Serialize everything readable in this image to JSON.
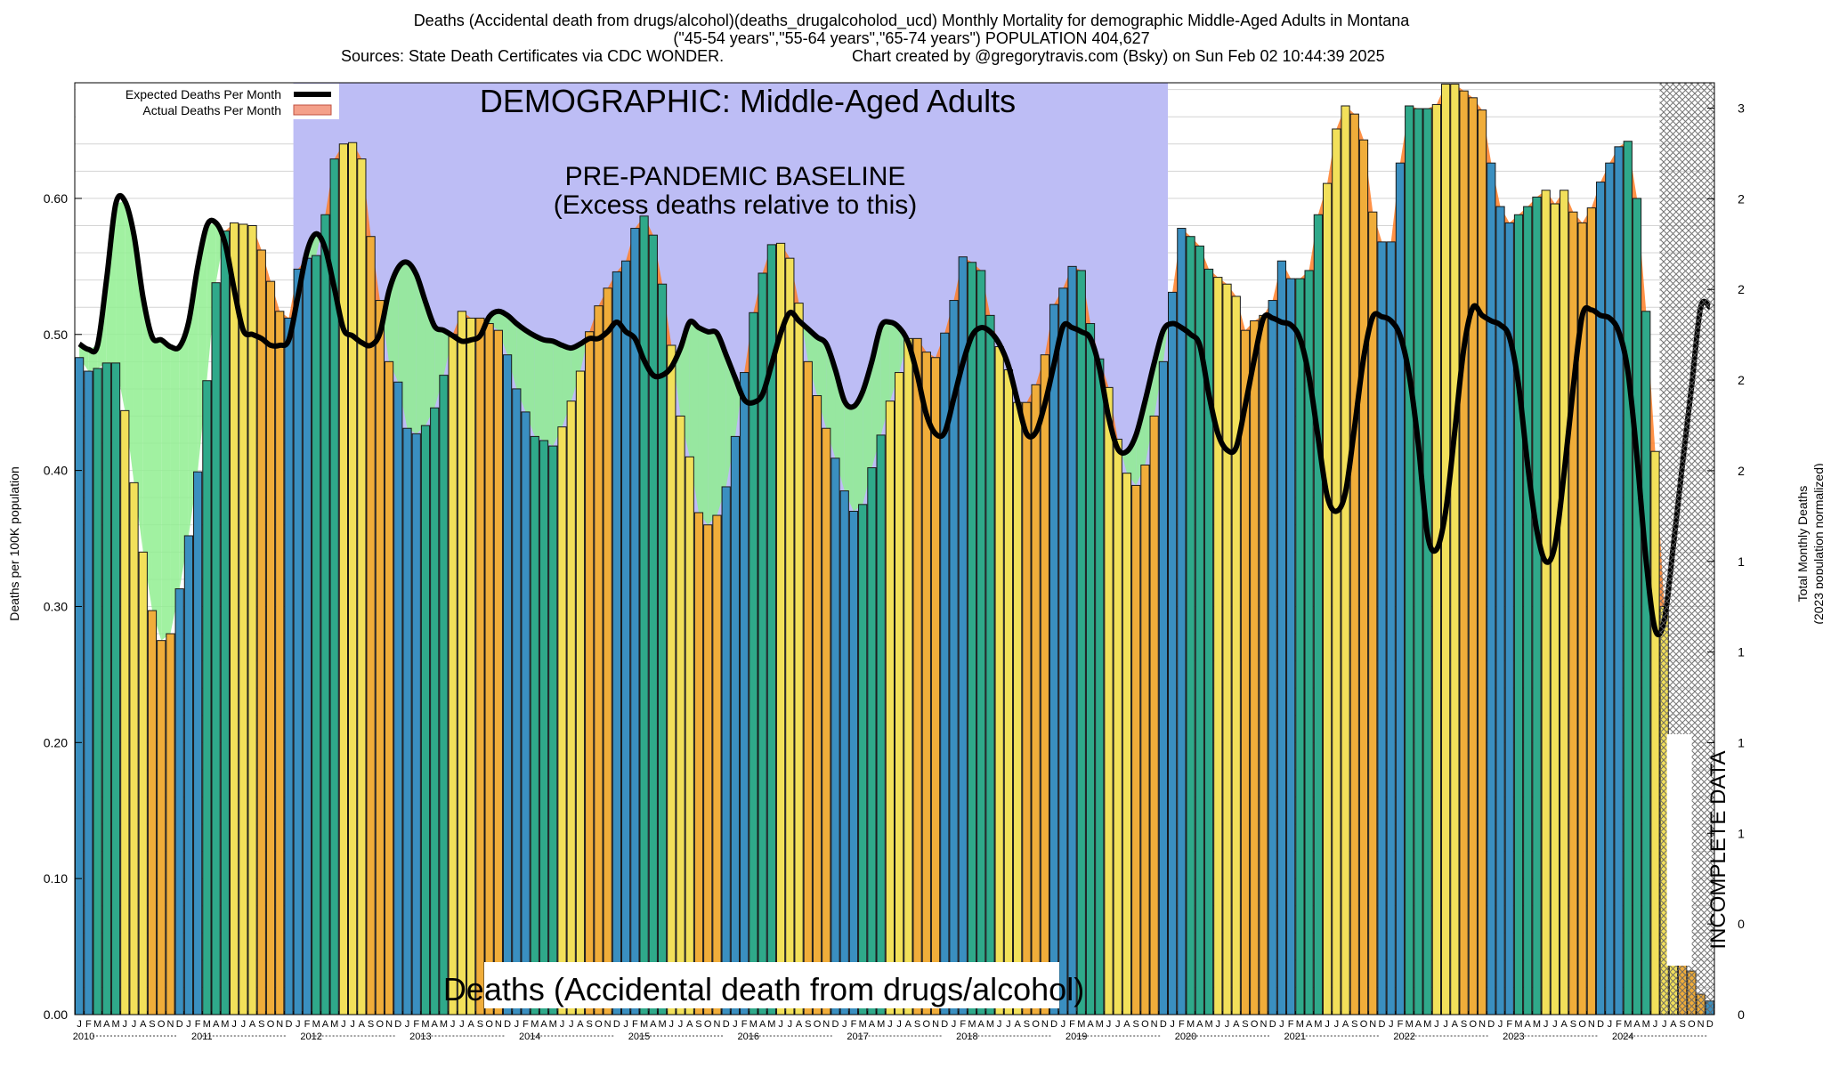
{
  "header": {
    "title_line1": "Deaths (Accidental death from drugs/alcohol)(deaths_drugalcoholod_ucd) Monthly Mortality for demographic Middle-Aged Adults in Montana",
    "title_line2": "(\"45-54 years\",\"55-64 years\",\"65-74 years\") POPULATION 404,627",
    "sources": "Sources: State Death Certificates via CDC WONDER.",
    "credit": "Chart created by @gregorytravis.com (Bsky) on Sun Feb 02 10:44:39 2025"
  },
  "chart_data": {
    "type": "bar",
    "title": "Deaths (Accidental death from drugs/alcohol)(deaths_drugalcoholod_ucd) Monthly Mortality for demographic Middle-Aged Adults in Montana",
    "ylabel": "Deaths per 100K population",
    "ylabel_right_line1": "Total Monthly Deaths",
    "ylabel_right_line2": "(2023 population normalized)",
    "ylim": [
      0,
      0.685
    ],
    "y_ticks": [
      "0.00",
      "0.10",
      "0.20",
      "0.30",
      "0.40",
      "0.50",
      "0.60"
    ],
    "y_tick_values": [
      0,
      0.1,
      0.2,
      0.3,
      0.4,
      0.5,
      0.6
    ],
    "right_ticks": [
      "0",
      "0",
      "1",
      "1",
      "1",
      "1",
      "2",
      "2",
      "2",
      "2",
      "3"
    ],
    "right_tick_values": [
      0,
      0.5,
      1,
      1.5,
      2,
      2.5,
      3,
      3.5,
      4,
      4.5,
      5
    ],
    "right_ylim": [
      0,
      5.14
    ],
    "month_letters": [
      "J",
      "F",
      "M",
      "A",
      "M",
      "J",
      "J",
      "A",
      "S",
      "O",
      "N",
      "D"
    ],
    "years": [
      "2010",
      "2011",
      "2012",
      "2013",
      "2014",
      "2015",
      "2016",
      "2017",
      "2018",
      "2019",
      "2020",
      "2021",
      "2022",
      "2023",
      "2024"
    ],
    "banner_title": "DEMOGRAPHIC: Middle-Aged Adults",
    "baseline_label_1": "PRE-PANDEMIC BASELINE",
    "baseline_label_2": "(Excess deaths relative to this)",
    "bottom_label": "Deaths (Accidental death from drugs/alcohol)",
    "incomplete_label": "INCOMPLETE DATA",
    "legend": {
      "expected": "Expected Deaths Per Month",
      "actual": "Actual Deaths Per Month"
    },
    "colors": {
      "winter": "#3a8fc0",
      "spring": "#2fa98a",
      "summer": "#f2e05a",
      "autumn": "#f0ad3a",
      "baseline_region": "#bdbdf5",
      "deficit_fill": "#90ee90",
      "excess_fill": "#ff7f27",
      "hatch": "#777777",
      "expected_line": "#000000"
    },
    "series": [
      {
        "name": "Actual Deaths Per Month",
        "values": [
          0.483,
          0.473,
          0.475,
          0.479,
          0.479,
          0.444,
          0.391,
          0.34,
          0.297,
          0.275,
          0.28,
          0.313,
          0.352,
          0.399,
          0.466,
          0.538,
          0.576,
          0.582,
          0.581,
          0.58,
          0.562,
          0.539,
          0.517,
          0.512,
          0.548,
          0.556,
          0.558,
          0.588,
          0.629,
          0.64,
          0.641,
          0.629,
          0.572,
          0.525,
          0.48,
          0.465,
          0.431,
          0.427,
          0.433,
          0.446,
          0.47,
          0.5,
          0.517,
          0.512,
          0.512,
          0.508,
          0.503,
          0.485,
          0.46,
          0.443,
          0.425,
          0.422,
          0.418,
          0.432,
          0.451,
          0.473,
          0.502,
          0.521,
          0.534,
          0.546,
          0.554,
          0.578,
          0.587,
          0.573,
          0.537,
          0.492,
          0.44,
          0.41,
          0.369,
          0.36,
          0.367,
          0.388,
          0.425,
          0.472,
          0.516,
          0.545,
          0.566,
          0.567,
          0.556,
          0.523,
          0.48,
          0.455,
          0.431,
          0.409,
          0.385,
          0.37,
          0.375,
          0.402,
          0.426,
          0.451,
          0.472,
          0.497,
          0.497,
          0.487,
          0.483,
          0.501,
          0.525,
          0.557,
          0.553,
          0.547,
          0.514,
          0.491,
          0.474,
          0.45,
          0.45,
          0.463,
          0.485,
          0.522,
          0.534,
          0.55,
          0.547,
          0.508,
          0.482,
          0.461,
          0.423,
          0.398,
          0.389,
          0.404,
          0.44,
          0.48,
          0.531,
          0.578,
          0.572,
          0.565,
          0.548,
          0.542,
          0.537,
          0.528,
          0.503,
          0.51,
          0.514,
          0.525,
          0.554,
          0.541,
          0.541,
          0.547,
          0.588,
          0.611,
          0.651,
          0.668,
          0.662,
          0.643,
          0.59,
          0.568,
          0.568,
          0.626,
          0.668,
          0.666,
          0.666,
          0.669,
          0.684,
          0.684,
          0.679,
          0.674,
          0.665,
          0.626,
          0.594,
          0.582,
          0.588,
          0.594,
          0.601,
          0.606,
          0.596,
          0.606,
          0.59,
          0.582,
          0.593,
          0.612,
          0.626,
          0.638,
          0.642,
          0.6,
          0.517,
          0.414,
          0.3,
          0.201,
          0.18,
          0.032,
          0.015,
          0.01
        ]
      },
      {
        "name": "Expected Deaths Per Month",
        "values": [
          0.493,
          0.489,
          0.492,
          0.541,
          0.596,
          0.598,
          0.573,
          0.527,
          0.498,
          0.496,
          0.491,
          0.491,
          0.509,
          0.55,
          0.58,
          0.582,
          0.567,
          0.533,
          0.503,
          0.5,
          0.497,
          0.492,
          0.492,
          0.496,
          0.528,
          0.561,
          0.574,
          0.563,
          0.534,
          0.504,
          0.499,
          0.494,
          0.492,
          0.501,
          0.532,
          0.549,
          0.553,
          0.544,
          0.524,
          0.506,
          0.503,
          0.499,
          0.495,
          0.496,
          0.499,
          0.513,
          0.517,
          0.514,
          0.508,
          0.503,
          0.499,
          0.496,
          0.495,
          0.492,
          0.49,
          0.493,
          0.497,
          0.497,
          0.502,
          0.509,
          0.502,
          0.497,
          0.481,
          0.47,
          0.47,
          0.476,
          0.49,
          0.509,
          0.505,
          0.502,
          0.501,
          0.485,
          0.468,
          0.452,
          0.45,
          0.456,
          0.478,
          0.501,
          0.516,
          0.51,
          0.504,
          0.498,
          0.493,
          0.474,
          0.451,
          0.447,
          0.458,
          0.48,
          0.506,
          0.509,
          0.505,
          0.494,
          0.47,
          0.441,
          0.427,
          0.428,
          0.453,
          0.479,
          0.499,
          0.505,
          0.502,
          0.493,
          0.477,
          0.451,
          0.427,
          0.428,
          0.449,
          0.478,
          0.506,
          0.505,
          0.502,
          0.497,
          0.475,
          0.439,
          0.416,
          0.414,
          0.426,
          0.451,
          0.479,
          0.503,
          0.508,
          0.505,
          0.5,
          0.492,
          0.456,
          0.427,
          0.415,
          0.417,
          0.448,
          0.482,
          0.512,
          0.512,
          0.509,
          0.507,
          0.497,
          0.469,
          0.424,
          0.381,
          0.37,
          0.384,
          0.432,
          0.483,
          0.513,
          0.513,
          0.51,
          0.499,
          0.47,
          0.419,
          0.353,
          0.342,
          0.37,
          0.429,
          0.49,
          0.52,
          0.514,
          0.51,
          0.507,
          0.498,
          0.463,
          0.404,
          0.356,
          0.333,
          0.345,
          0.398,
          0.461,
          0.514,
          0.518,
          0.514,
          0.512,
          0.502,
          0.473,
          0.41,
          0.334,
          0.283,
          0.29,
          0.345,
          0.405,
          0.462,
          0.52,
          0.52
        ]
      }
    ]
  }
}
